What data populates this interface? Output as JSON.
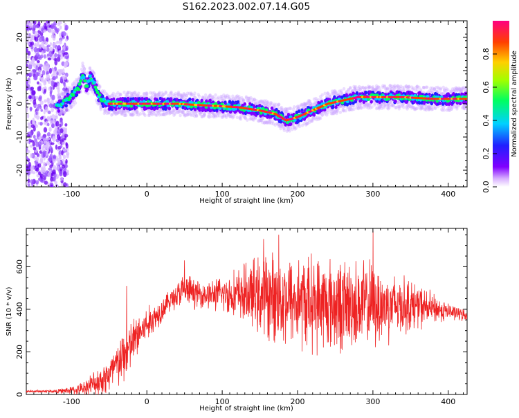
{
  "figure": {
    "title": "S162.2023.002.07.14.G05"
  },
  "chart_data": [
    {
      "type": "heatmap",
      "description": "Spectrogram of frequency vs height of straight line",
      "xlabel": "Height of straight line (km)",
      "ylabel": "Frequency (Hz)",
      "xlim": [
        -160,
        425
      ],
      "ylim": [
        -25,
        25
      ],
      "xticks": [
        -100,
        0,
        100,
        200,
        300,
        400
      ],
      "yticks": [
        -20,
        -10,
        0,
        10,
        20
      ],
      "colorbar": {
        "label": "Normalized spectral amplitude",
        "range": [
          0.0,
          1.0
        ],
        "ticks": [
          0.0,
          0.2,
          0.4,
          0.6,
          0.8
        ],
        "colormap": [
          "#ffffff",
          "#d8b0ff",
          "#8000ff",
          "#2020ff",
          "#00d0ff",
          "#00ff60",
          "#a0ff00",
          "#ffd000",
          "#ff4000",
          "#ff0080"
        ]
      },
      "ridge": {
        "x": [
          -120,
          -100,
          -90,
          -85,
          -80,
          -75,
          -70,
          -65,
          -60,
          -50,
          -40,
          -20,
          0,
          40,
          80,
          120,
          150,
          170,
          185,
          200,
          220,
          240,
          260,
          280,
          300,
          340,
          380,
          425
        ],
        "y": [
          -1,
          2,
          5,
          9,
          5,
          8,
          6,
          3,
          1,
          0,
          0,
          0,
          0,
          0,
          -0.5,
          -1,
          -2,
          -3,
          -5,
          -4,
          -2,
          0,
          1,
          2,
          2,
          2,
          1.5,
          1.5
        ]
      }
    },
    {
      "type": "line",
      "xlabel": "Height of straight line (km)",
      "ylabel": "SNR (10 * v/v)",
      "xlim": [
        -160,
        425
      ],
      "ylim": [
        0,
        780
      ],
      "xticks": [
        -100,
        0,
        100,
        200,
        300,
        400
      ],
      "yticks": [
        0,
        200,
        400,
        600
      ],
      "color": "#ee2222",
      "envelope": {
        "x": [
          -160,
          -120,
          -90,
          -70,
          -50,
          -30,
          -10,
          10,
          30,
          50,
          70,
          100,
          130,
          160,
          200,
          250,
          300,
          350,
          400,
          425
        ],
        "mean": [
          15,
          15,
          22,
          50,
          90,
          180,
          290,
          360,
          440,
          490,
          470,
          470,
          470,
          460,
          440,
          420,
          420,
          420,
          390,
          370
        ],
        "spread": [
          5,
          8,
          25,
          60,
          90,
          130,
          100,
          70,
          50,
          80,
          60,
          80,
          140,
          200,
          220,
          220,
          200,
          120,
          40,
          25
        ]
      },
      "peaks": [
        {
          "x": -27,
          "y": 510
        },
        {
          "x": 50,
          "y": 630
        },
        {
          "x": 155,
          "y": 730
        },
        {
          "x": 175,
          "y": 750
        },
        {
          "x": 300,
          "y": 770
        }
      ]
    }
  ]
}
